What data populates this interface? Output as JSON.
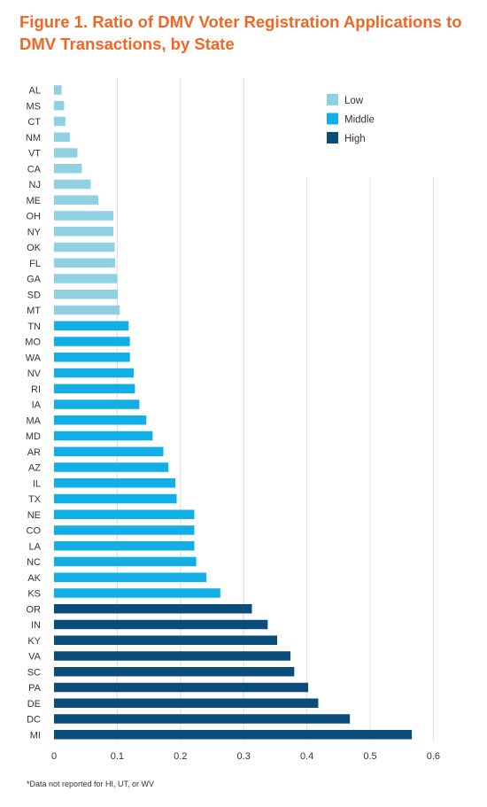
{
  "title": "Figure 1. Ratio of DMV Voter Registration Applications to DMV Transactions, by State",
  "footnote": "*Data not reported for HI, UT, or WV",
  "colors": {
    "title": "#f26522",
    "low": "#8fd0e2",
    "middle": "#12aee6",
    "high": "#0b4d7a",
    "grid": "#dcdcdc",
    "text": "#333333"
  },
  "chart_data": {
    "type": "bar",
    "orientation": "horizontal",
    "xlim": [
      0,
      0.6
    ],
    "xticks": [
      "0",
      "0.1",
      "0.2",
      "0.3",
      "0.4",
      "0.5",
      "0.6"
    ],
    "grid": "vertical",
    "legend_position": "top-right",
    "legend": [
      {
        "key": "low",
        "label": "Low"
      },
      {
        "key": "middle",
        "label": "Middle"
      },
      {
        "key": "high",
        "label": "High"
      }
    ],
    "bars": [
      {
        "state": "AL",
        "value": 0.012,
        "group": "low"
      },
      {
        "state": "MS",
        "value": 0.016,
        "group": "low"
      },
      {
        "state": "CT",
        "value": 0.018,
        "group": "low"
      },
      {
        "state": "NM",
        "value": 0.025,
        "group": "low"
      },
      {
        "state": "VT",
        "value": 0.037,
        "group": "low"
      },
      {
        "state": "CA",
        "value": 0.044,
        "group": "low"
      },
      {
        "state": "NJ",
        "value": 0.058,
        "group": "low"
      },
      {
        "state": "ME",
        "value": 0.07,
        "group": "low"
      },
      {
        "state": "OH",
        "value": 0.094,
        "group": "low"
      },
      {
        "state": "NY",
        "value": 0.094,
        "group": "low"
      },
      {
        "state": "OK",
        "value": 0.096,
        "group": "low"
      },
      {
        "state": "FL",
        "value": 0.097,
        "group": "low"
      },
      {
        "state": "GA",
        "value": 0.1,
        "group": "low"
      },
      {
        "state": "SD",
        "value": 0.101,
        "group": "low"
      },
      {
        "state": "MT",
        "value": 0.104,
        "group": "low"
      },
      {
        "state": "TN",
        "value": 0.118,
        "group": "middle"
      },
      {
        "state": "MO",
        "value": 0.12,
        "group": "middle"
      },
      {
        "state": "WA",
        "value": 0.12,
        "group": "middle"
      },
      {
        "state": "NV",
        "value": 0.126,
        "group": "middle"
      },
      {
        "state": "RI",
        "value": 0.128,
        "group": "middle"
      },
      {
        "state": "IA",
        "value": 0.135,
        "group": "middle"
      },
      {
        "state": "MA",
        "value": 0.146,
        "group": "middle"
      },
      {
        "state": "MD",
        "value": 0.156,
        "group": "middle"
      },
      {
        "state": "AR",
        "value": 0.173,
        "group": "middle"
      },
      {
        "state": "AZ",
        "value": 0.181,
        "group": "middle"
      },
      {
        "state": "IL",
        "value": 0.192,
        "group": "middle"
      },
      {
        "state": "TX",
        "value": 0.194,
        "group": "middle"
      },
      {
        "state": "NE",
        "value": 0.222,
        "group": "middle"
      },
      {
        "state": "CO",
        "value": 0.222,
        "group": "middle"
      },
      {
        "state": "LA",
        "value": 0.222,
        "group": "middle"
      },
      {
        "state": "NC",
        "value": 0.225,
        "group": "middle"
      },
      {
        "state": "AK",
        "value": 0.241,
        "group": "middle"
      },
      {
        "state": "KS",
        "value": 0.263,
        "group": "middle"
      },
      {
        "state": "OR",
        "value": 0.313,
        "group": "high"
      },
      {
        "state": "IN",
        "value": 0.338,
        "group": "high"
      },
      {
        "state": "KY",
        "value": 0.353,
        "group": "high"
      },
      {
        "state": "VA",
        "value": 0.374,
        "group": "high"
      },
      {
        "state": "SC",
        "value": 0.38,
        "group": "high"
      },
      {
        "state": "PA",
        "value": 0.402,
        "group": "high"
      },
      {
        "state": "DE",
        "value": 0.418,
        "group": "high"
      },
      {
        "state": "DC",
        "value": 0.468,
        "group": "high"
      },
      {
        "state": "MI",
        "value": 0.566,
        "group": "high"
      }
    ]
  }
}
